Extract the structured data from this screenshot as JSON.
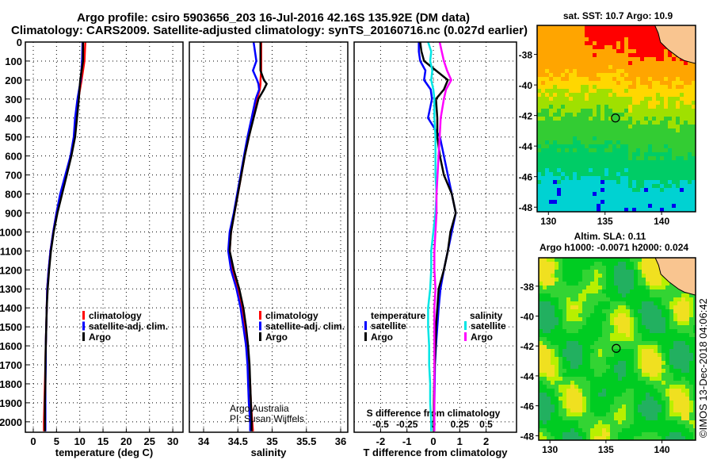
{
  "header": {
    "title_line1": "Argo profile: csiro 5903656_203 16-Jul-2016 42.16S 135.92E (DM data)",
    "title_line2": "Climatology: CARS2009. Satellite-adjusted climatology: synTS_20160716.nc (0.027d earlier)"
  },
  "colors": {
    "climatology": "#ff0000",
    "satellite": "#0000ff",
    "argo": "#000000",
    "sal_satellite": "#00e5e5",
    "sal_argo": "#ff00ff",
    "land": "#f9c590"
  },
  "credit": {
    "line1": "Argo Australia",
    "line2": "PI: Susan Wijffels"
  },
  "watermark": "©IMOS 13-Dec-2018 04:06:42",
  "chart_data": [
    {
      "type": "line",
      "id": "temperature",
      "xlabel": "temperature (deg C)",
      "ylabel": "",
      "xlim": [
        -1.7,
        32.2
      ],
      "ylim": [
        2055,
        0
      ],
      "xticks": [
        0,
        5,
        10,
        15,
        20,
        25,
        30
      ],
      "yticks": [
        0,
        100,
        200,
        300,
        400,
        500,
        600,
        700,
        800,
        900,
        1000,
        1100,
        1200,
        1300,
        1400,
        1500,
        1600,
        1700,
        1800,
        1900,
        2000
      ],
      "legend": [
        "climatology",
        "satellite-adj. clim.",
        "Argo"
      ],
      "depth": [
        0,
        100,
        200,
        300,
        400,
        500,
        600,
        700,
        800,
        900,
        1000,
        1100,
        1200,
        1300,
        1400,
        1500,
        1600,
        1700,
        1800,
        1900,
        2000,
        2050
      ],
      "series": [
        {
          "name": "climatology",
          "values": [
            11.2,
            11.0,
            10.4,
            9.7,
            9.2,
            8.8,
            8.1,
            7.0,
            5.9,
            5.0,
            4.3,
            3.7,
            3.3,
            3.0,
            2.9,
            2.8,
            2.7,
            2.6,
            2.5,
            2.4,
            2.3,
            2.3
          ]
        },
        {
          "name": "satellite-adj. clim.",
          "values": [
            10.6,
            10.5,
            10.2,
            9.5,
            9.0,
            8.7,
            8.0,
            6.9,
            5.8,
            5.0,
            4.3,
            3.7,
            3.3,
            3.0,
            2.9,
            2.8,
            2.7,
            2.7,
            2.6,
            2.6,
            2.6,
            2.6
          ]
        },
        {
          "name": "Argo",
          "values": [
            10.7,
            10.7,
            10.1,
            9.8,
            9.4,
            9.0,
            8.2,
            7.2,
            6.2,
            5.2,
            4.4,
            3.8,
            3.4,
            3.1,
            2.9,
            2.8,
            2.7,
            2.6,
            2.6,
            2.5,
            2.5,
            2.5
          ]
        }
      ]
    },
    {
      "type": "line",
      "id": "salinity",
      "xlabel": "salinity",
      "xlim": [
        33.8,
        36.1
      ],
      "ylim": [
        2055,
        0
      ],
      "xticks": [
        34,
        34.5,
        35,
        35.5,
        36
      ],
      "legend": [
        "climatology",
        "satellite-adj. clim.",
        "Argo"
      ],
      "depth": [
        0,
        100,
        150,
        200,
        220,
        250,
        300,
        400,
        500,
        600,
        700,
        800,
        900,
        1000,
        1100,
        1200,
        1300,
        1400,
        1500,
        1600,
        1700,
        1800,
        1900,
        2000,
        2050
      ],
      "series": [
        {
          "name": "climatology",
          "values": [
            34.84,
            34.84,
            34.84,
            34.83,
            34.83,
            34.82,
            34.78,
            34.72,
            34.66,
            34.6,
            34.55,
            34.5,
            34.45,
            34.4,
            34.38,
            34.42,
            34.5,
            34.56,
            34.6,
            34.64,
            34.66,
            34.68,
            34.69,
            34.71,
            34.72
          ]
        },
        {
          "name": "satellite-adj. clim.",
          "values": [
            34.73,
            34.77,
            34.72,
            34.78,
            34.8,
            34.81,
            34.76,
            34.7,
            34.64,
            34.59,
            34.54,
            34.49,
            34.44,
            34.38,
            34.36,
            34.4,
            34.48,
            34.54,
            34.58,
            34.62,
            34.64,
            34.65,
            34.66,
            34.68,
            34.68
          ]
        },
        {
          "name": "Argo",
          "values": [
            34.83,
            34.83,
            34.83,
            34.88,
            34.92,
            34.88,
            34.8,
            34.73,
            34.66,
            34.6,
            34.55,
            34.5,
            34.45,
            34.4,
            34.38,
            34.44,
            34.52,
            34.58,
            34.62,
            34.65,
            34.67,
            34.68,
            34.69,
            34.7,
            34.7
          ]
        }
      ]
    },
    {
      "type": "line",
      "id": "difference",
      "xlabel": "T difference from climatology",
      "xlabel2": "S difference from climatology",
      "xlim": [
        -3.0,
        3.1
      ],
      "xlim_s": [
        -0.75,
        0.78
      ],
      "ylim": [
        2055,
        0
      ],
      "xticks": [
        -2,
        -1,
        0,
        1,
        2
      ],
      "xticks_s": [
        -0.5,
        -0.25,
        0,
        0.25,
        0.5
      ],
      "xtick_labels_s": [
        "-0.5",
        "-0.25",
        "0",
        "0.25",
        "0.5"
      ],
      "legend_titles": {
        "temperature": "temperature",
        "salinity": "salinity"
      },
      "legend": {
        "t_sat": "satellite",
        "t_argo": "Argo",
        "s_sat": "satellite",
        "s_argo": "Argo"
      },
      "depth": [
        0,
        50,
        100,
        150,
        200,
        250,
        300,
        400,
        500,
        600,
        700,
        800,
        900,
        1000,
        1100,
        1200,
        1300,
        1400,
        1500,
        1600,
        1700,
        1800,
        1900,
        2000,
        2050
      ],
      "series": [
        {
          "name": "T satellite",
          "axis": "T",
          "values": [
            -0.55,
            -0.55,
            -0.5,
            -0.3,
            -0.35,
            -0.1,
            -0.05,
            -0.2,
            0.25,
            0.4,
            0.55,
            0.7,
            0.85,
            0.7,
            0.55,
            0.4,
            0.27,
            0.2,
            0.15,
            0.1,
            0.06,
            0.05,
            0.04,
            0.03,
            0.03
          ]
        },
        {
          "name": "T Argo",
          "axis": "T",
          "values": [
            -0.5,
            -0.45,
            -0.35,
            0.1,
            0.55,
            0.4,
            0.1,
            0.15,
            0.15,
            0.25,
            0.4,
            0.7,
            0.85,
            0.65,
            0.55,
            0.4,
            0.2,
            0.15,
            0.1,
            0.08,
            0.05,
            0.03,
            0.02,
            0.02,
            0.02
          ]
        },
        {
          "name": "S satellite",
          "axis": "S",
          "values": [
            -0.05,
            -0.02,
            -0.03,
            -0.01,
            -0.02,
            0.0,
            0.01,
            0.01,
            0.02,
            0.02,
            0.02,
            0.03,
            0.02,
            0.0,
            -0.02,
            -0.02,
            -0.03,
            -0.05,
            -0.05,
            -0.04,
            -0.04,
            -0.03,
            -0.03,
            -0.02,
            -0.02
          ]
        },
        {
          "name": "S Argo",
          "axis": "S",
          "values": [
            0.06,
            0.08,
            0.1,
            0.13,
            0.17,
            0.12,
            0.1,
            0.07,
            0.06,
            0.05,
            0.04,
            0.03,
            0.03,
            0.02,
            0.01,
            0.01,
            0.02,
            0.01,
            0.01,
            0.01,
            0.01,
            0.01,
            0.01,
            0.01,
            0.01
          ]
        }
      ]
    },
    {
      "type": "heatmap",
      "id": "sst-map",
      "title": "sat. SST: 10.7 Argo: 10.9",
      "xlim": [
        129,
        143
      ],
      "ylim": [
        -48.3,
        -36.1
      ],
      "xticks": [
        130,
        135,
        140
      ],
      "yticks": [
        -38,
        -40,
        -42,
        -44,
        -46,
        -48
      ],
      "marker": {
        "lon": 135.92,
        "lat": -42.16
      }
    },
    {
      "type": "heatmap",
      "id": "sla-map",
      "title": "Altim. SLA: 0.11",
      "subtitle": "Argo h1000: -0.0071 h2000: 0.024",
      "xlim": [
        129,
        143
      ],
      "ylim": [
        -48.3,
        -36.1
      ],
      "xticks": [
        130,
        135,
        140
      ],
      "yticks": [
        -38,
        -40,
        -42,
        -44,
        -46,
        -48
      ],
      "marker": {
        "lon": 135.92,
        "lat": -42.16
      }
    }
  ]
}
